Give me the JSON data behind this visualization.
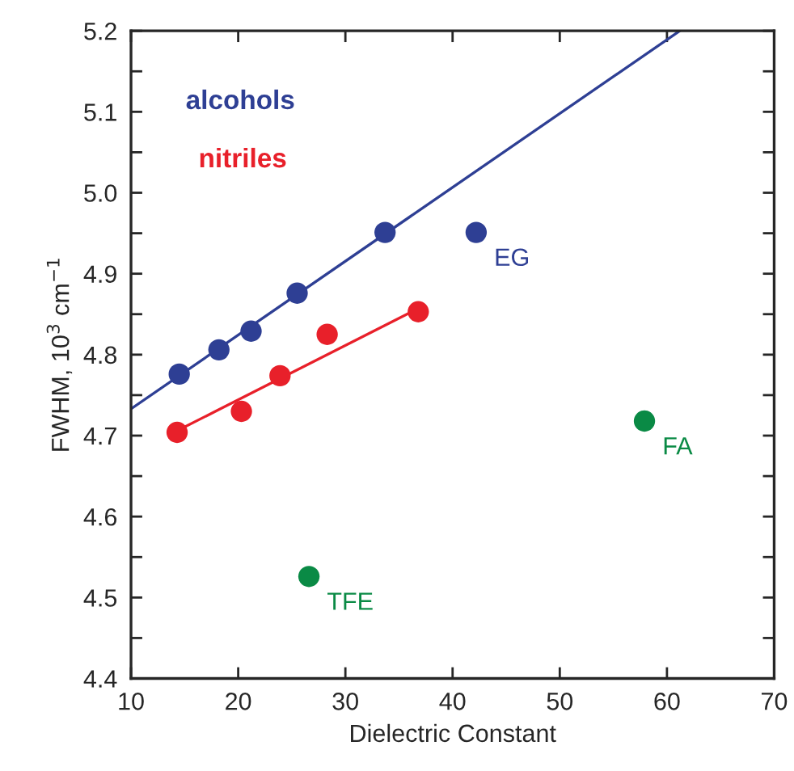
{
  "chart_data": {
    "type": "scatter",
    "xlabel": "Dielectric Constant",
    "ylabel": "FWHM, 10$^{3}$ cm$^{−1}$",
    "xlim": [
      10,
      70
    ],
    "ylim": [
      4.4,
      5.2
    ],
    "xticks": [
      10,
      20,
      30,
      40,
      50,
      60,
      70
    ],
    "yticks": [
      4.4,
      {
        "value": 4.45,
        "label": null
      },
      4.5,
      {
        "value": 4.55,
        "label": null
      },
      4.6,
      {
        "value": 4.65,
        "label": null
      },
      4.7,
      {
        "value": 4.75,
        "label": null
      },
      4.8,
      {
        "value": 4.85,
        "label": null
      },
      4.9,
      {
        "value": 4.95,
        "label": null
      },
      {
        "value": 5.0,
        "label": "5.0"
      },
      {
        "value": 5.05,
        "label": null
      },
      5.1,
      {
        "value": 5.15,
        "label": null
      },
      5.2
    ],
    "grid": false,
    "legend": false,
    "series": [
      {
        "name": "alcohols",
        "marker": "circle",
        "color": "#2e3f94",
        "x": [
          14.5,
          18.2,
          21.2,
          25.5,
          33.7,
          42.2
        ],
        "values": [
          4.776,
          4.806,
          4.829,
          4.876,
          4.951,
          4.951
        ]
      },
      {
        "type": "line",
        "marker": "none",
        "color": "#2e3f94",
        "x": [
          10,
          61.2
        ],
        "values": [
          4.733,
          5.2
        ]
      },
      {
        "name": "nitriles",
        "marker": "circle",
        "color": "#e8202a",
        "x": [
          14.3,
          20.3,
          23.9,
          28.3,
          36.8
        ],
        "values": [
          4.704,
          4.73,
          4.774,
          4.825,
          4.853
        ]
      },
      {
        "type": "line",
        "marker": "none",
        "color": "#e8202a",
        "x": [
          14.3,
          36.8
        ],
        "values": [
          4.706,
          4.857
        ]
      },
      {
        "marker": "circle",
        "color": "#0a8a45",
        "x": [
          26.6,
          57.9
        ],
        "values": [
          4.526,
          4.718
        ]
      }
    ],
    "annotations": [
      {
        "text": "EG",
        "x": 42.2,
        "y": 4.951
      },
      {
        "text": "FA",
        "x": 57.9,
        "y": 4.718
      },
      {
        "text": "TFE",
        "x": 26.6,
        "y": 4.526
      }
    ]
  }
}
